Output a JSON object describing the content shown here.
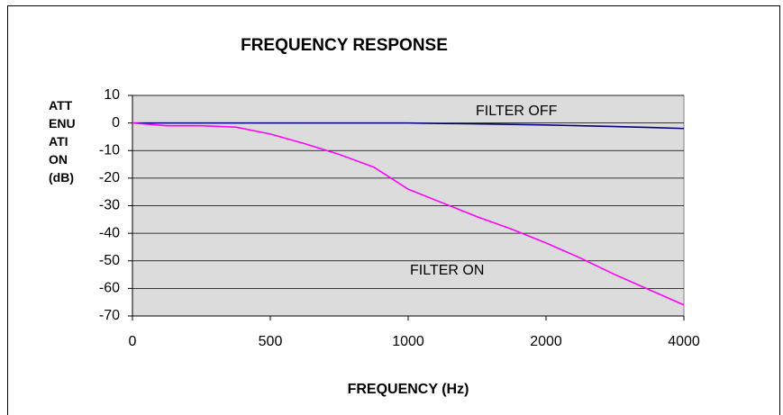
{
  "chart_data": {
    "type": "line",
    "title": "FREQUENCY RESPONSE",
    "xlabel": "FREQUENCY (Hz)",
    "ylabel": "ATTENUATION (dB)",
    "categories": [
      "0",
      null,
      null,
      null,
      "500",
      null,
      null,
      null,
      "1000",
      null,
      null,
      null,
      "2000",
      null,
      null,
      null,
      "4000"
    ],
    "series": [
      {
        "name": "FILTER OFF",
        "color": "#000080",
        "values": [
          0,
          0,
          0,
          0,
          0,
          0,
          0,
          0,
          0,
          -0.2,
          -0.3,
          -0.5,
          -0.7,
          -1,
          -1.3,
          -1.6,
          -2
        ]
      },
      {
        "name": "FILTER ON",
        "color": "#ff00ff",
        "values": [
          0,
          -1,
          -1,
          -1.5,
          -4,
          -7.5,
          -11.4,
          -16,
          -24,
          -29,
          -34,
          -38.5,
          -43.5,
          -49,
          -55,
          -60.5,
          -66
        ]
      }
    ],
    "annotations": [
      {
        "text": "FILTER OFF"
      },
      {
        "text": "FILTER ON"
      }
    ],
    "ylim": [
      -70,
      10
    ],
    "yticks": [
      10,
      0,
      -10,
      -20,
      -30,
      -40,
      -50,
      -60,
      -70
    ],
    "grid": true
  }
}
